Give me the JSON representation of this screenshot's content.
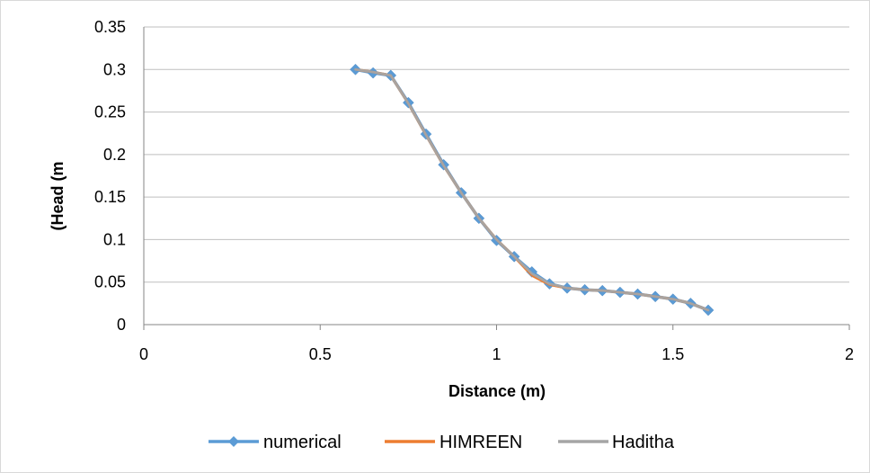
{
  "chart_data": {
    "type": "line",
    "title": "",
    "xlabel": "Distance (m)",
    "ylabel": "(Head (m",
    "xlim": [
      0,
      2
    ],
    "ylim": [
      0,
      0.35
    ],
    "x_ticks": [
      0,
      0.5,
      1,
      1.5,
      2
    ],
    "x_tick_labels": [
      "0",
      "0.5",
      "1",
      "1.5",
      "2"
    ],
    "y_ticks": [
      0,
      0.05,
      0.1,
      0.15,
      0.2,
      0.25,
      0.3,
      0.35
    ],
    "y_tick_labels": [
      "0",
      "0.05",
      "0.1",
      "0.15",
      "0.2",
      "0.25",
      "0.3",
      "0.35"
    ],
    "grid": {
      "horizontal": true,
      "vertical": false
    },
    "legend_position": "bottom",
    "x": [
      0.6,
      0.65,
      0.7,
      0.75,
      0.8,
      0.85,
      0.9,
      0.95,
      1.0,
      1.05,
      1.1,
      1.15,
      1.2,
      1.25,
      1.3,
      1.35,
      1.4,
      1.45,
      1.5,
      1.55,
      1.6
    ],
    "series": [
      {
        "name": "numerical",
        "color": "#5b9bd5",
        "marker": "diamond",
        "values": [
          0.3,
          0.296,
          0.293,
          0.261,
          0.224,
          0.188,
          0.155,
          0.125,
          0.099,
          0.08,
          0.062,
          0.048,
          0.043,
          0.041,
          0.04,
          0.038,
          0.036,
          0.033,
          0.03,
          0.025,
          0.017
        ]
      },
      {
        "name": "HIMREEN",
        "color": "#ed7d31",
        "marker": "none",
        "values": [
          0.3,
          0.297,
          0.293,
          0.26,
          0.223,
          0.187,
          0.155,
          0.125,
          0.1,
          0.08,
          0.058,
          0.047,
          0.043,
          0.041,
          0.04,
          0.038,
          0.036,
          0.033,
          0.03,
          0.025,
          0.017
        ]
      },
      {
        "name": "Haditha",
        "color": "#a5a5a5",
        "marker": "none",
        "values": [
          0.3,
          0.297,
          0.293,
          0.26,
          0.223,
          0.187,
          0.155,
          0.125,
          0.1,
          0.08,
          0.06,
          0.048,
          0.043,
          0.041,
          0.04,
          0.038,
          0.036,
          0.033,
          0.03,
          0.025,
          0.017
        ]
      }
    ]
  }
}
